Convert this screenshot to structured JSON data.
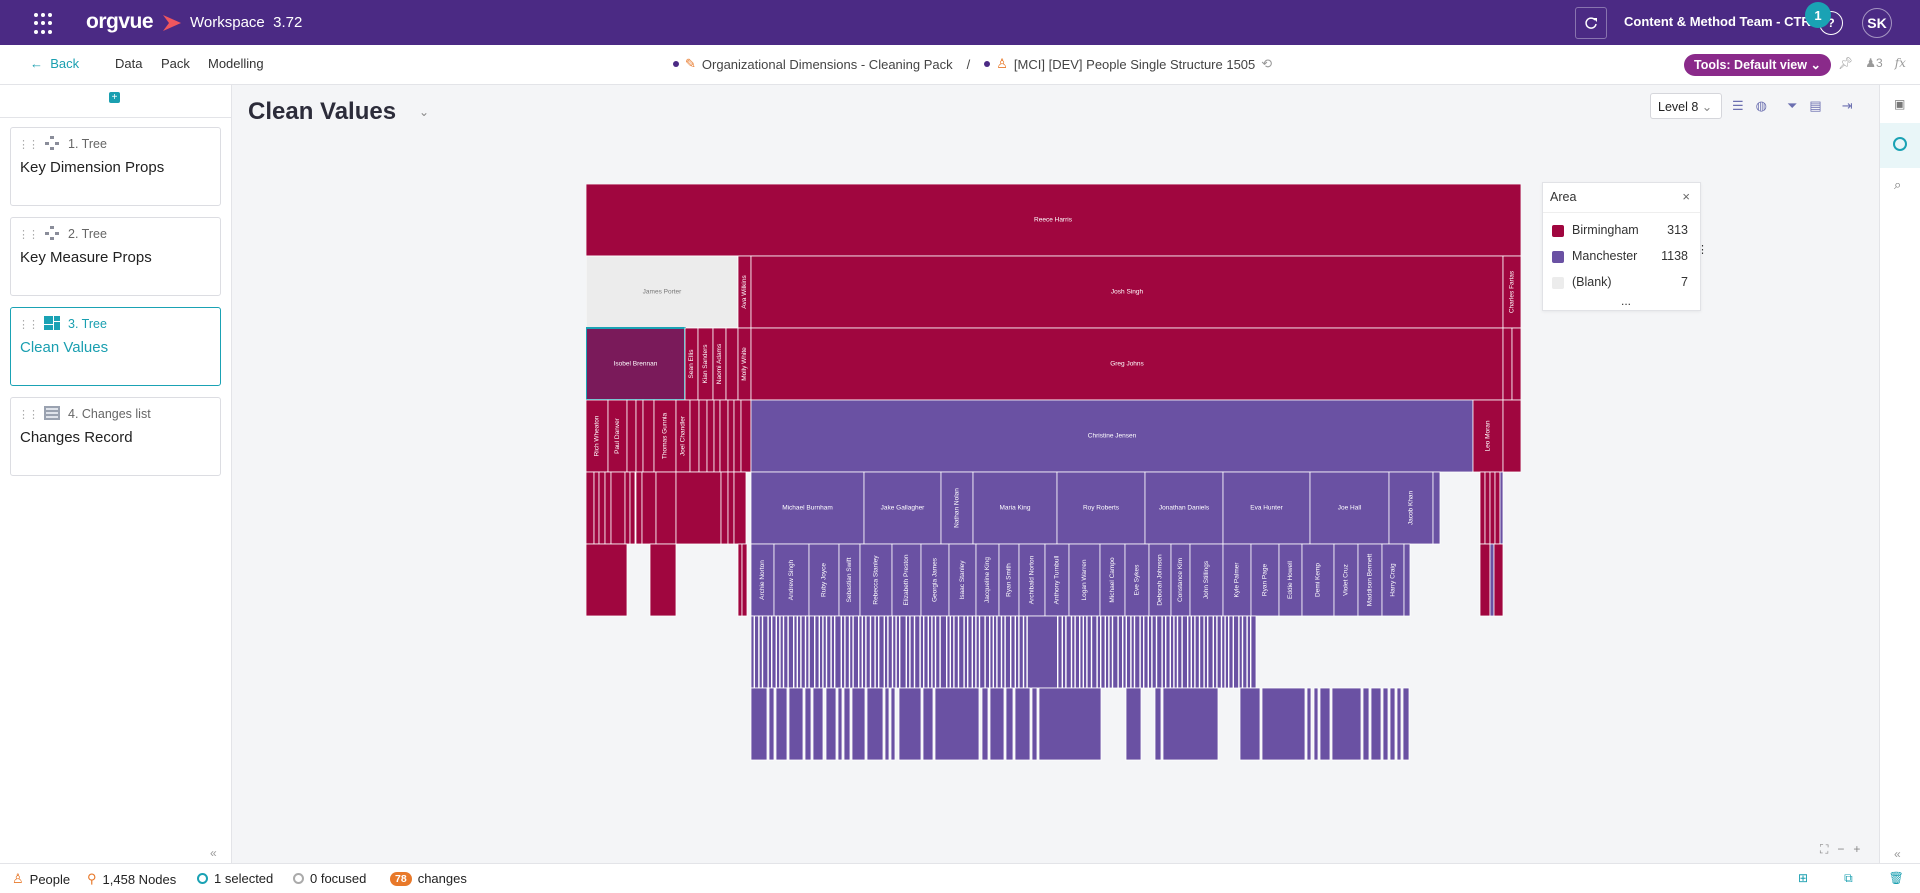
{
  "app": {
    "logo": "orgvue",
    "workspace_label": "Workspace",
    "version": "3.72",
    "team": "Content & Method Team - CTR",
    "notification_count": "1",
    "help": "?",
    "user_initials": "SK"
  },
  "nav": {
    "back": "Back",
    "links": [
      "Data",
      "Pack",
      "Modelling"
    ],
    "pack_name": "Organizational Dimensions - Cleaning Pack",
    "separator": "/",
    "dataset_name": "[MCI] [DEV] People Single Structure 1505",
    "tools": "Tools: Default view",
    "users_count": "3",
    "fx": "fx"
  },
  "sidebar": {
    "cards": [
      {
        "sub": "1. Tree",
        "title": "Key Dimension Props",
        "icon": "tree-icon",
        "active": false
      },
      {
        "sub": "2. Tree",
        "title": "Key Measure Props",
        "icon": "tree-icon",
        "active": false
      },
      {
        "sub": "3. Tree",
        "title": "Clean Values",
        "icon": "treemap-icon",
        "active": true
      },
      {
        "sub": "4. Changes list",
        "title": "Changes Record",
        "icon": "table-icon",
        "active": false
      }
    ]
  },
  "main": {
    "title": "Clean Values",
    "level": "Level 8"
  },
  "legend": {
    "title": "Area",
    "close": "×",
    "more": "...",
    "items": [
      {
        "name": "Birmingham",
        "count": "313",
        "color": "#a0063f"
      },
      {
        "name": "Manchester",
        "count": "1138",
        "color": "#6a51a3"
      },
      {
        "name": "(Blank)",
        "count": "7",
        "color": "#ececec"
      }
    ]
  },
  "status": {
    "entity": "People",
    "nodes": "1,458 Nodes",
    "selected": "1 selected",
    "focused": "0 focused",
    "changes_count": "78",
    "changes_label": "changes"
  },
  "colors": {
    "purple": "#4b2a84",
    "teal": "#1aa2b4",
    "birmingham": "#a0063f",
    "manchester": "#6a51a3",
    "blank": "#ececec"
  },
  "treemap": {
    "labels": [
      {
        "text": "Reece Harris",
        "area": "Birmingham"
      },
      {
        "text": "James Porter",
        "area": "(Blank)"
      },
      {
        "text": "Ava Wilkins",
        "area": "Birmingham"
      },
      {
        "text": "Josh Singh",
        "area": "Birmingham"
      },
      {
        "text": "Charles Farias",
        "area": "Birmingham"
      },
      {
        "text": "Isobel Brennan",
        "area": "Birmingham"
      },
      {
        "text": "Sean Ellis",
        "area": "Birmingham"
      },
      {
        "text": "Kian Sanders",
        "area": "Birmingham"
      },
      {
        "text": "Naomi Adams",
        "area": "Birmingham"
      },
      {
        "text": "Molly White",
        "area": "Birmingham"
      },
      {
        "text": "Greg Johns",
        "area": "Birmingham"
      },
      {
        "text": "Rich Wheaton",
        "area": "Birmingham"
      },
      {
        "text": "Paul Danver",
        "area": "Birmingham"
      },
      {
        "text": "Thomas Gunnia",
        "area": "Birmingham"
      },
      {
        "text": "Joel Chandler",
        "area": "Birmingham"
      },
      {
        "text": "Christine Jensen",
        "area": "Manchester"
      },
      {
        "text": "Leo Moran",
        "area": "Birmingham"
      },
      {
        "text": "Michael Burnham",
        "area": "Manchester"
      },
      {
        "text": "Jake Gallagher",
        "area": "Manchester"
      },
      {
        "text": "Nathan Nolan",
        "area": "Manchester"
      },
      {
        "text": "Maria King",
        "area": "Manchester"
      },
      {
        "text": "Roy Roberts",
        "area": "Manchester"
      },
      {
        "text": "Jonathan Daniels",
        "area": "Manchester"
      },
      {
        "text": "Eva Hunter",
        "area": "Manchester"
      },
      {
        "text": "Joe Hall",
        "area": "Manchester"
      },
      {
        "text": "Jacob Khan",
        "area": "Manchester"
      },
      {
        "text": "Archie Norton",
        "area": "Manchester"
      },
      {
        "text": "Andrew Singh",
        "area": "Manchester"
      },
      {
        "text": "Ruby Joyce",
        "area": "Manchester"
      },
      {
        "text": "Sebastian Swift",
        "area": "Manchester"
      },
      {
        "text": "Rebecca Stanley",
        "area": "Manchester"
      },
      {
        "text": "Elizabeth Preston",
        "area": "Manchester"
      },
      {
        "text": "Georgia James",
        "area": "Manchester"
      },
      {
        "text": "Isaac Stanley",
        "area": "Manchester"
      },
      {
        "text": "Jacqueline King",
        "area": "Manchester"
      },
      {
        "text": "Ryan Smith",
        "area": "Manchester"
      },
      {
        "text": "Archibald Norton",
        "area": "Manchester"
      },
      {
        "text": "Anthony Turnbull",
        "area": "Manchester"
      },
      {
        "text": "Logan Warren",
        "area": "Manchester"
      },
      {
        "text": "Michael Campo",
        "area": "Manchester"
      },
      {
        "text": "Eve Sykes",
        "area": "Manchester"
      },
      {
        "text": "Deborah Johnson",
        "area": "Manchester"
      },
      {
        "text": "Constance Kim",
        "area": "Manchester"
      },
      {
        "text": "John Stillings",
        "area": "Manchester"
      },
      {
        "text": "Kyle Palmer",
        "area": "Manchester"
      },
      {
        "text": "Ryan Page",
        "area": "Manchester"
      },
      {
        "text": "Eddie Howell",
        "area": "Manchester"
      },
      {
        "text": "Demi Kemp",
        "area": "Manchester"
      },
      {
        "text": "Violet Cruz",
        "area": "Manchester"
      },
      {
        "text": "Maddison Bennett",
        "area": "Manchester"
      },
      {
        "text": "Harry Craig",
        "area": "Manchester"
      }
    ]
  }
}
